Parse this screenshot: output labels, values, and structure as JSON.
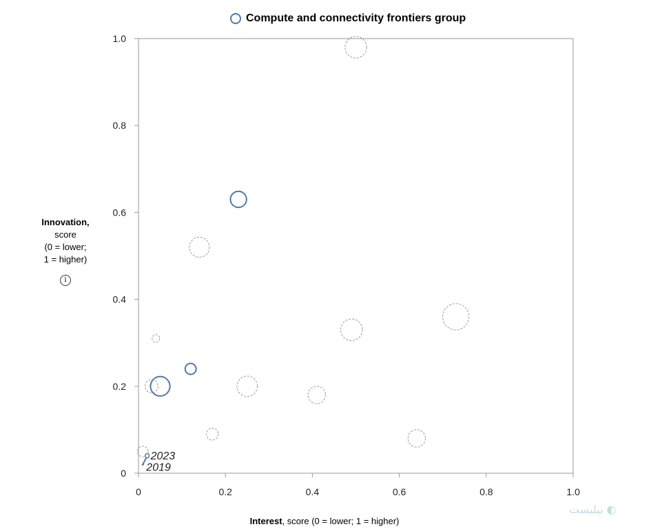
{
  "chart_data": {
    "type": "scatter",
    "legend": {
      "label": "Compute and connectivity frontiers group",
      "color": "#5178a6"
    },
    "xlabel_bold": "Interest",
    "xlabel_rest": ", score (0 = lower; 1 = higher)",
    "ylabel_bold": "Innovation,",
    "ylabel_lines": [
      "score",
      "(0 = lower;",
      "1 = higher)"
    ],
    "xlim": [
      0,
      1
    ],
    "ylim": [
      0,
      1
    ],
    "xticks": [
      {
        "value": 0,
        "label": "0"
      },
      {
        "value": 0.2,
        "label": "0.2"
      },
      {
        "value": 0.4,
        "label": "0.4"
      },
      {
        "value": 0.6,
        "label": "0.6"
      },
      {
        "value": 0.8,
        "label": "0.8"
      },
      {
        "value": 1.0,
        "label": "1.0"
      }
    ],
    "yticks": [
      {
        "value": 0,
        "label": "0"
      },
      {
        "value": 0.2,
        "label": "0.2"
      },
      {
        "value": 0.4,
        "label": "0.4"
      },
      {
        "value": 0.6,
        "label": "0.6"
      },
      {
        "value": 0.8,
        "label": "0.8"
      },
      {
        "value": 1.0,
        "label": "1.0"
      }
    ],
    "highlighted": [
      {
        "x": 0.23,
        "y": 0.63,
        "size": 4.5
      },
      {
        "x": 0.12,
        "y": 0.24,
        "size": 2.1
      },
      {
        "x": 0.05,
        "y": 0.2,
        "size": 6.6
      }
    ],
    "other": [
      {
        "x": 0.5,
        "y": 0.98,
        "size": 8.1
      },
      {
        "x": 0.14,
        "y": 0.52,
        "size": 7.0
      },
      {
        "x": 0.73,
        "y": 0.36,
        "size": 12.1
      },
      {
        "x": 0.49,
        "y": 0.33,
        "size": 8.2
      },
      {
        "x": 0.04,
        "y": 0.31,
        "size": 1.0
      },
      {
        "x": 0.25,
        "y": 0.2,
        "size": 7.3
      },
      {
        "x": 0.03,
        "y": 0.2,
        "size": 3.0
      },
      {
        "x": 0.41,
        "y": 0.18,
        "size": 5.3
      },
      {
        "x": 0.17,
        "y": 0.09,
        "size": 2.5
      },
      {
        "x": 0.64,
        "y": 0.08,
        "size": 5.3
      },
      {
        "x": 0.01,
        "y": 0.05,
        "size": 2.0
      }
    ],
    "trajectory": {
      "start": {
        "x": 0.01,
        "y": 0.02,
        "year": "2019"
      },
      "end": {
        "x": 0.02,
        "y": 0.04,
        "year": "2023"
      }
    }
  },
  "watermark": "بیلیست ◐"
}
